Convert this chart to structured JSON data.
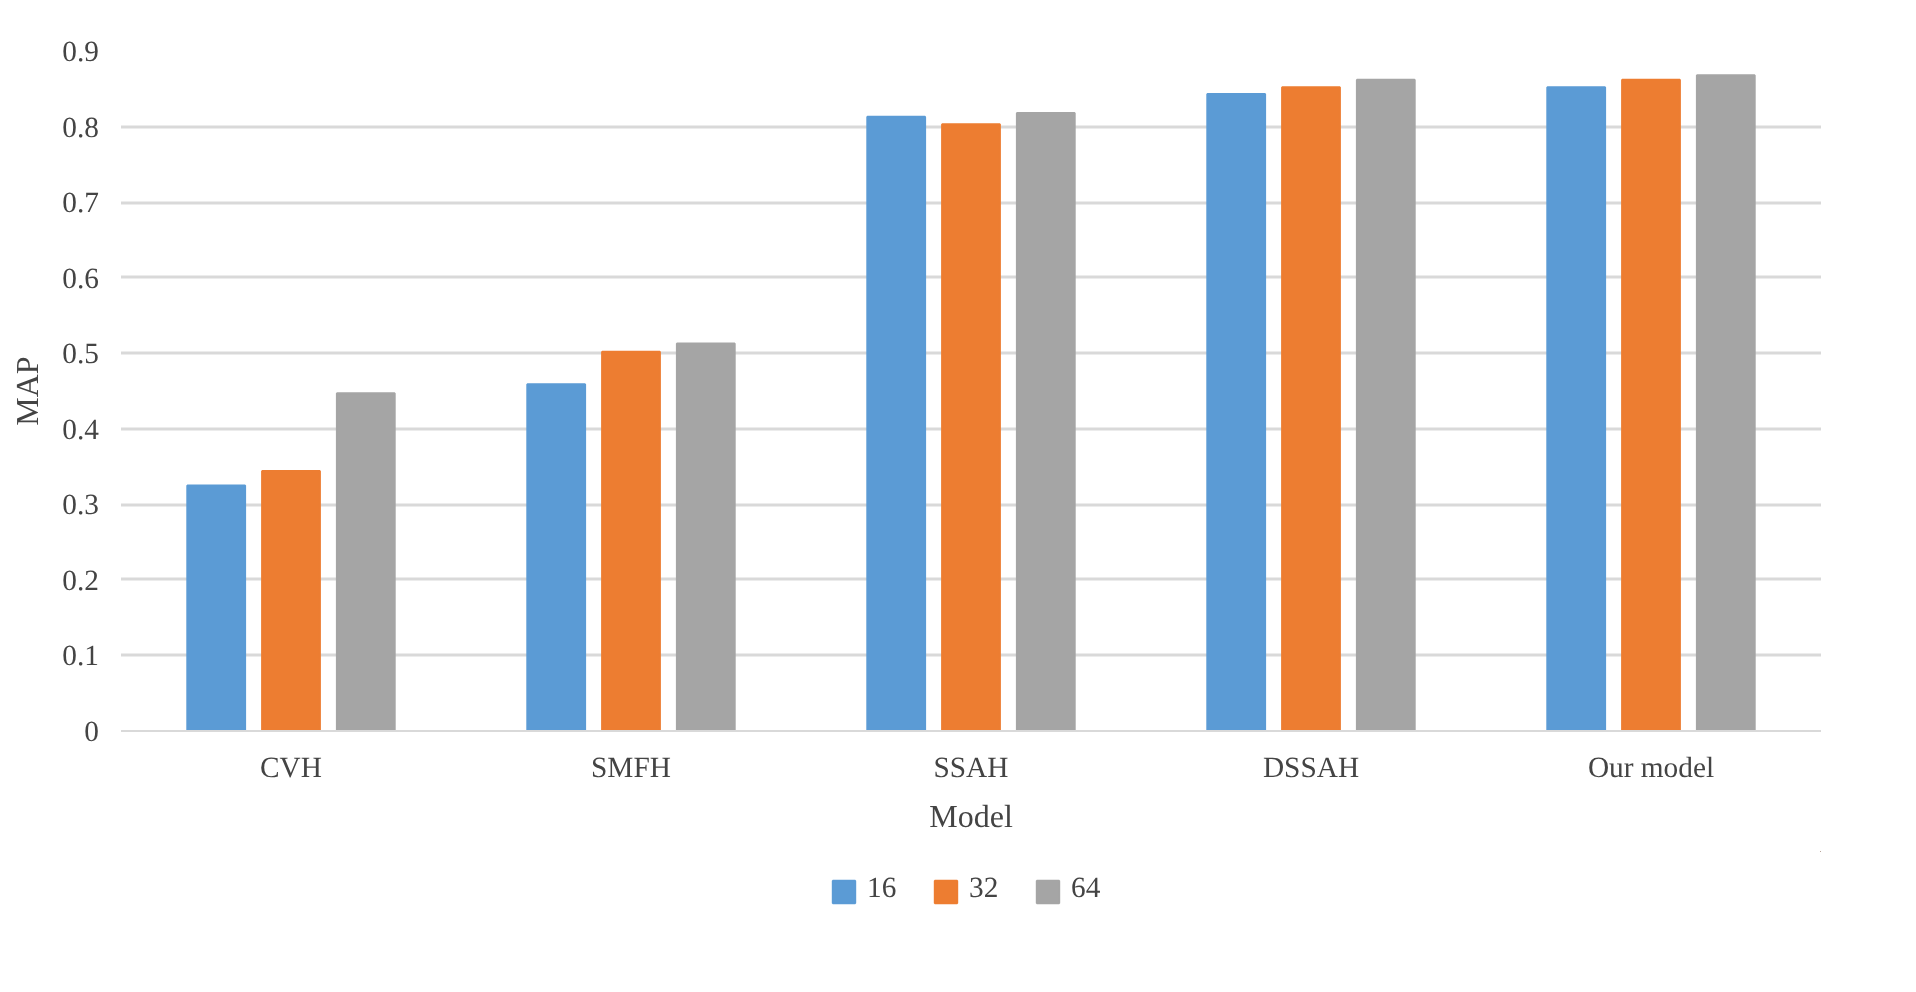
{
  "chart_data": {
    "type": "bar",
    "xlabel": "Model",
    "ylabel": "MAP",
    "categories": [
      "CVH",
      "SMFH",
      "SSAH",
      "DSSAH",
      "Our model"
    ],
    "series": [
      {
        "name": "16",
        "color": "#5b9bd5",
        "values": [
          0.325,
          0.459,
          0.813,
          0.843,
          0.852
        ]
      },
      {
        "name": "32",
        "color": "#ed7d31",
        "values": [
          0.344,
          0.502,
          0.803,
          0.852,
          0.862
        ]
      },
      {
        "name": "64",
        "color": "#a5a5a5",
        "values": [
          0.447,
          0.513,
          0.818,
          0.862,
          0.868
        ]
      }
    ],
    "ylim": [
      0,
      0.9
    ],
    "yticks": [
      0,
      0.1,
      0.2,
      0.3,
      0.4,
      0.5,
      0.6,
      0.7,
      0.8,
      0.9
    ],
    "grid": "y",
    "legend": "bottom"
  }
}
